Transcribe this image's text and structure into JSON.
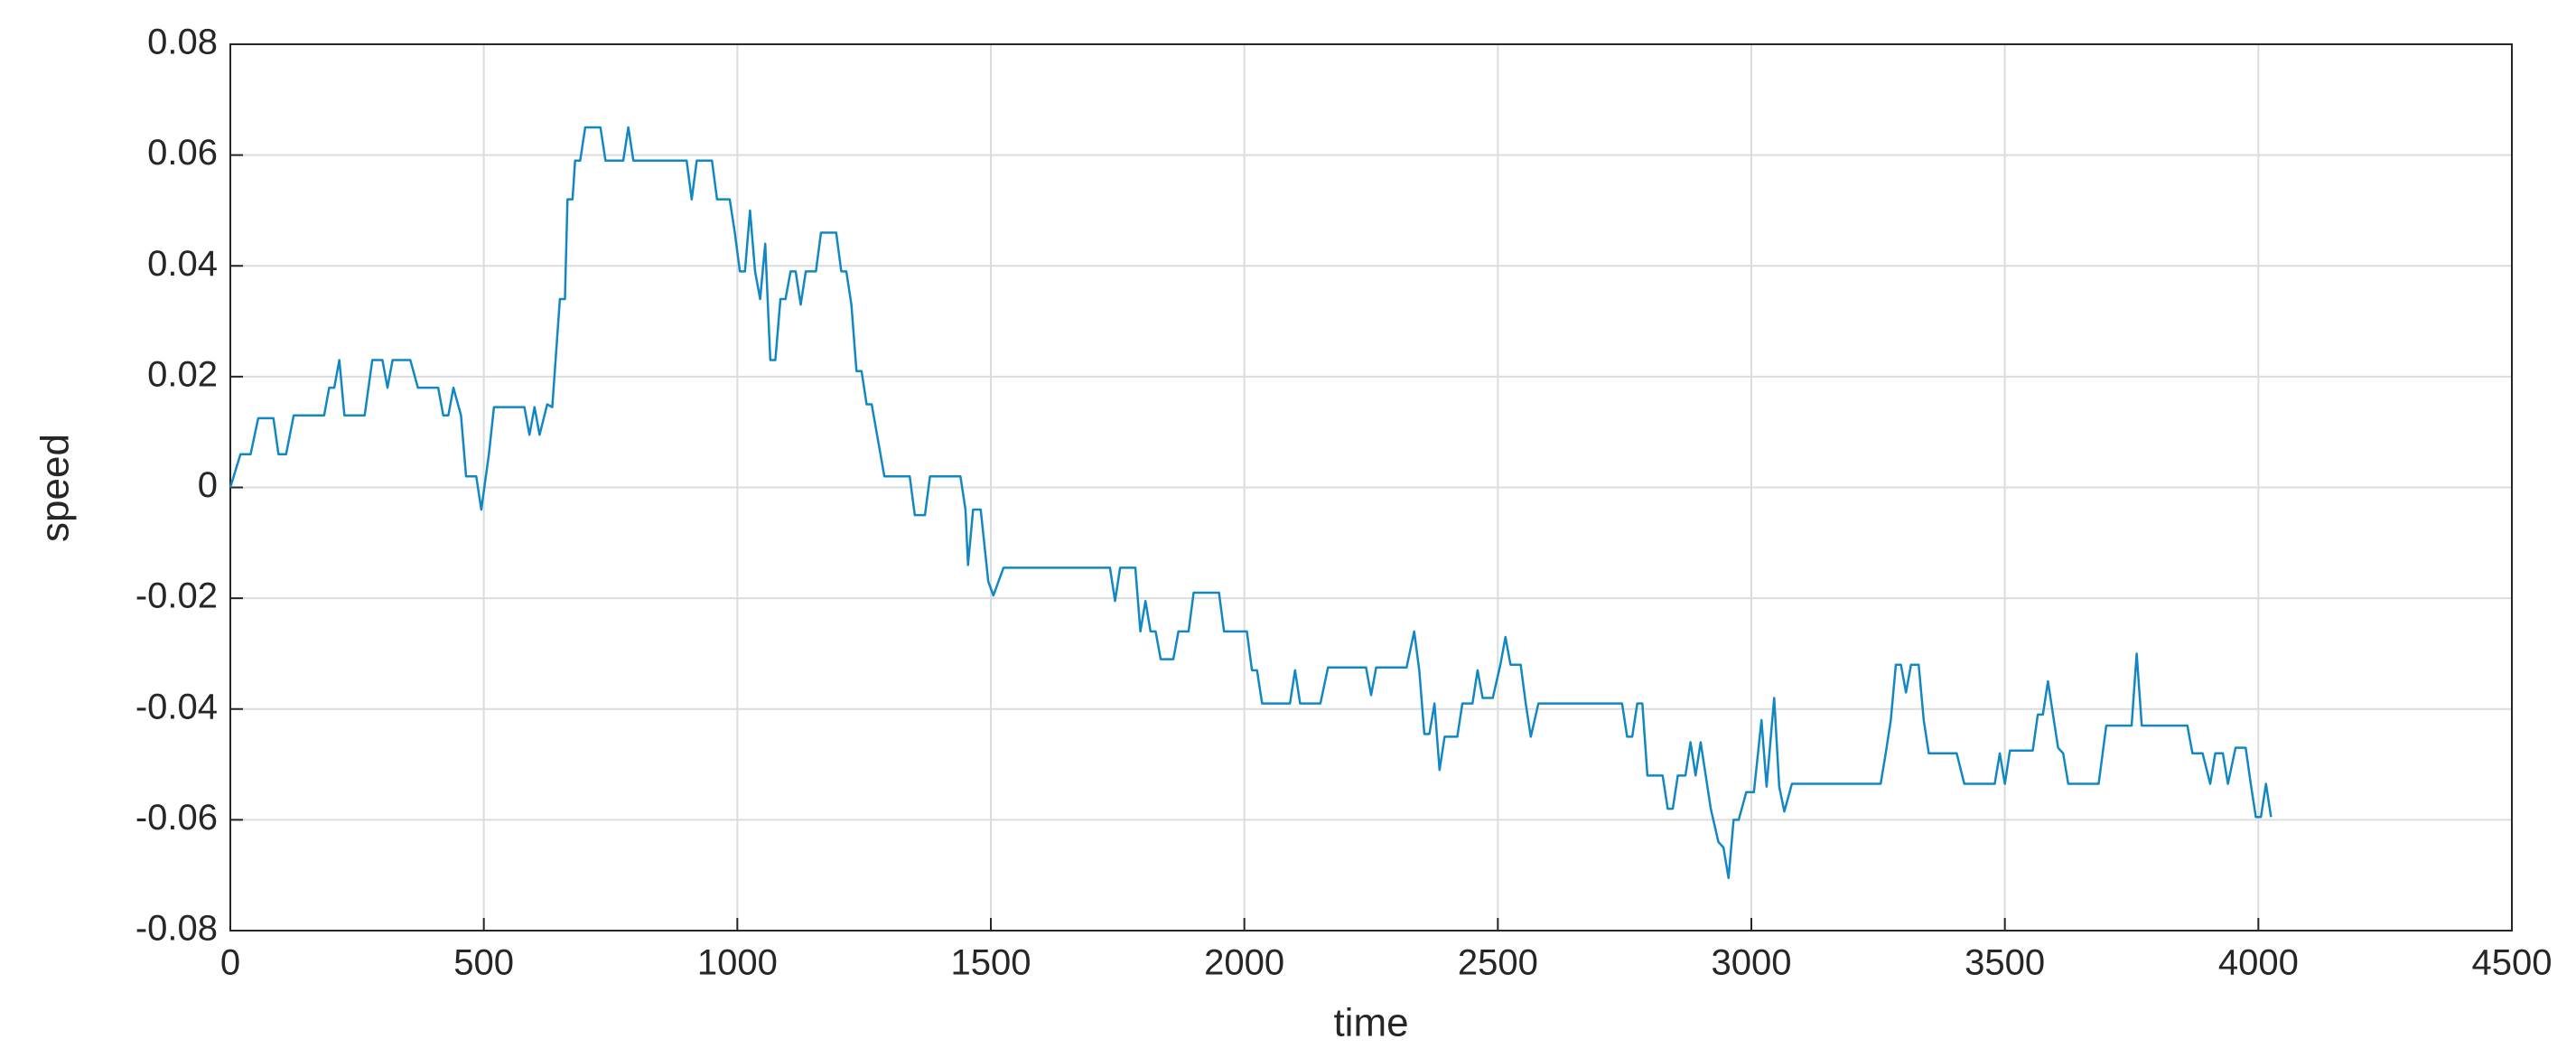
{
  "chart_data": {
    "type": "line",
    "xlabel": "time",
    "ylabel": "speed",
    "color": "#1187c4",
    "grid": true,
    "xlim": [
      0,
      4500
    ],
    "xticks": [
      0,
      500,
      1000,
      1500,
      2000,
      2500,
      3000,
      3500,
      4000,
      4500
    ],
    "ylim": [
      -0.08,
      0.08
    ],
    "yticks": [
      -0.08,
      -0.06,
      -0.04,
      -0.02,
      0,
      0.02,
      0.04,
      0.06,
      0.08
    ],
    "x": [
      0,
      20,
      40,
      55,
      85,
      95,
      110,
      125,
      185,
      195,
      205,
      215,
      225,
      265,
      280,
      300,
      310,
      320,
      355,
      370,
      410,
      420,
      430,
      440,
      455,
      465,
      485,
      495,
      510,
      520,
      580,
      590,
      600,
      610,
      625,
      635,
      640,
      650,
      660,
      665,
      675,
      680,
      690,
      700,
      730,
      740,
      775,
      785,
      795,
      900,
      910,
      920,
      950,
      960,
      985,
      995,
      1005,
      1015,
      1025,
      1035,
      1045,
      1055,
      1065,
      1075,
      1085,
      1095,
      1105,
      1115,
      1125,
      1135,
      1155,
      1165,
      1195,
      1205,
      1215,
      1225,
      1235,
      1245,
      1255,
      1265,
      1290,
      1340,
      1350,
      1370,
      1380,
      1440,
      1450,
      1455,
      1465,
      1480,
      1495,
      1505,
      1525,
      1735,
      1745,
      1755,
      1785,
      1795,
      1805,
      1815,
      1825,
      1835,
      1860,
      1870,
      1890,
      1900,
      1950,
      1960,
      2005,
      2015,
      2025,
      2035,
      2090,
      2100,
      2110,
      2150,
      2165,
      2240,
      2250,
      2260,
      2320,
      2335,
      2345,
      2355,
      2365,
      2375,
      2385,
      2395,
      2420,
      2430,
      2450,
      2460,
      2470,
      2490,
      2505,
      2515,
      2525,
      2545,
      2555,
      2565,
      2580,
      2745,
      2755,
      2765,
      2775,
      2785,
      2795,
      2825,
      2835,
      2845,
      2855,
      2870,
      2880,
      2890,
      2900,
      2910,
      2920,
      2935,
      2945,
      2955,
      2965,
      2975,
      2990,
      3005,
      3020,
      3030,
      3045,
      3055,
      3065,
      3080,
      3255,
      3265,
      3275,
      3285,
      3295,
      3305,
      3315,
      3330,
      3340,
      3350,
      3405,
      3420,
      3480,
      3490,
      3500,
      3510,
      3555,
      3565,
      3575,
      3585,
      3595,
      3605,
      3615,
      3625,
      3685,
      3700,
      3750,
      3760,
      3770,
      3860,
      3870,
      3890,
      3905,
      3915,
      3930,
      3940,
      3955,
      3975,
      3985,
      3995,
      4005,
      4015,
      4025
    ],
    "values": [
      0,
      0.006,
      0.006,
      0.0125,
      0.0125,
      0.006,
      0.006,
      0.013,
      0.013,
      0.018,
      0.018,
      0.023,
      0.013,
      0.013,
      0.023,
      0.023,
      0.018,
      0.023,
      0.023,
      0.018,
      0.018,
      0.013,
      0.013,
      0.018,
      0.013,
      0.002,
      0.002,
      -0.004,
      0.006,
      0.0145,
      0.0145,
      0.0095,
      0.0145,
      0.0095,
      0.015,
      0.0145,
      0.021,
      0.034,
      0.034,
      0.052,
      0.052,
      0.059,
      0.059,
      0.065,
      0.065,
      0.059,
      0.059,
      0.065,
      0.059,
      0.059,
      0.052,
      0.059,
      0.059,
      0.052,
      0.052,
      0.046,
      0.039,
      0.039,
      0.05,
      0.039,
      0.034,
      0.044,
      0.023,
      0.023,
      0.034,
      0.034,
      0.039,
      0.039,
      0.033,
      0.039,
      0.039,
      0.046,
      0.046,
      0.039,
      0.039,
      0.033,
      0.021,
      0.021,
      0.015,
      0.015,
      0.002,
      0.002,
      -0.005,
      -0.005,
      0.002,
      0.002,
      -0.004,
      -0.014,
      -0.004,
      -0.004,
      -0.017,
      -0.0195,
      -0.0145,
      -0.0145,
      -0.0205,
      -0.0145,
      -0.0145,
      -0.026,
      -0.0205,
      -0.026,
      -0.026,
      -0.031,
      -0.031,
      -0.026,
      -0.026,
      -0.019,
      -0.019,
      -0.026,
      -0.026,
      -0.033,
      -0.033,
      -0.039,
      -0.039,
      -0.033,
      -0.039,
      -0.039,
      -0.0325,
      -0.0325,
      -0.0375,
      -0.0325,
      -0.0325,
      -0.026,
      -0.033,
      -0.0445,
      -0.0445,
      -0.039,
      -0.051,
      -0.045,
      -0.045,
      -0.039,
      -0.039,
      -0.033,
      -0.038,
      -0.038,
      -0.032,
      -0.027,
      -0.032,
      -0.032,
      -0.039,
      -0.045,
      -0.039,
      -0.039,
      -0.045,
      -0.045,
      -0.039,
      -0.039,
      -0.052,
      -0.052,
      -0.058,
      -0.058,
      -0.052,
      -0.052,
      -0.046,
      -0.052,
      -0.046,
      -0.052,
      -0.058,
      -0.064,
      -0.065,
      -0.0705,
      -0.06,
      -0.06,
      -0.055,
      -0.055,
      -0.042,
      -0.054,
      -0.038,
      -0.054,
      -0.0585,
      -0.0535,
      -0.0535,
      -0.048,
      -0.042,
      -0.032,
      -0.032,
      -0.037,
      -0.032,
      -0.032,
      -0.042,
      -0.048,
      -0.048,
      -0.0535,
      -0.0535,
      -0.048,
      -0.0535,
      -0.0475,
      -0.0475,
      -0.041,
      -0.041,
      -0.035,
      -0.041,
      -0.047,
      -0.048,
      -0.0535,
      -0.0535,
      -0.043,
      -0.043,
      -0.03,
      -0.043,
      -0.043,
      -0.048,
      -0.048,
      -0.0535,
      -0.048,
      -0.048,
      -0.0535,
      -0.047,
      -0.047,
      -0.0535,
      -0.0595,
      -0.0595,
      -0.0535,
      -0.0595
    ]
  }
}
